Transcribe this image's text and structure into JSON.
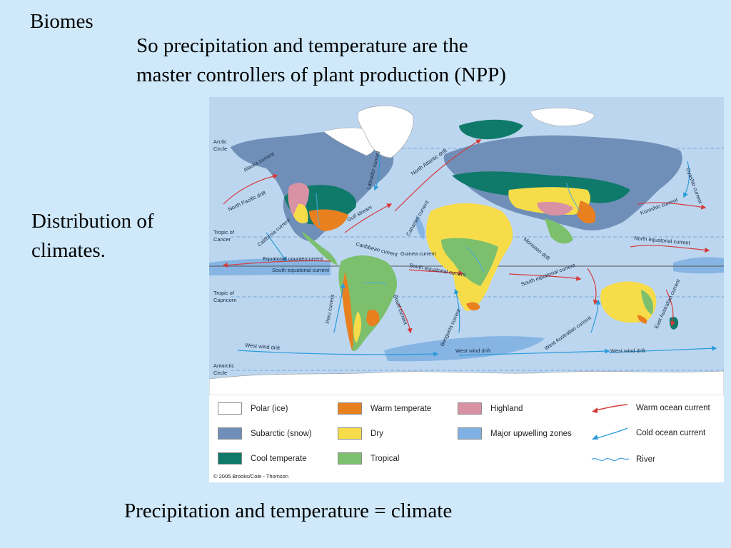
{
  "slide": {
    "title": "Biomes",
    "subtitle_line1": "So precipitation and temperature are the",
    "subtitle_line2": "master controllers of plant production (NPP)",
    "side_line1": "Distribution of",
    "side_line2": "climates.",
    "footer": "Precipitation and temperature = climate"
  },
  "map": {
    "latitude_labels": {
      "arctic": "Arctic",
      "arctic_2": "Circle",
      "cancer": "Tropic of",
      "cancer_2": "Cancer",
      "capricorn": "Tropic of",
      "capricorn_2": "Capricorn",
      "antarctic": "Antarctic",
      "antarctic_2": "Circle"
    },
    "currents": {
      "alaska": "Alaska current",
      "north_pacific": "North Pacific drift",
      "california": "California current",
      "labrador": "Labrador current",
      "north_atlantic": "North Atlantic drift",
      "gulf_stream": "Gulf stream",
      "canaries": "Canaries current",
      "caribbean": "Caribbean current",
      "guinea": "Guinea current",
      "equatorial_counter": "Equatorial countercurrent",
      "south_equatorial": "South equatorial current",
      "south_equatorial_atl": "South equatorial current",
      "south_equatorial_ind": "South equatorial current",
      "peru": "Peru current",
      "brazil": "Brazil current",
      "benguela": "Benguela current",
      "monsoon": "Monsoon drift",
      "kuroshio": "Kuroshio current",
      "oyashio": "Oyashio current",
      "north_equatorial": "North equatorial current",
      "east_australian": "East Australian current",
      "west_australian": "West Australian current",
      "west_wind_1": "West wind drift",
      "west_wind_2": "West wind drift",
      "west_wind_3": "West wind drift"
    }
  },
  "legend": {
    "items": [
      {
        "label": "Polar (ice)",
        "color": "#ffffff"
      },
      {
        "label": "Warm temperate",
        "color": "#e8801f"
      },
      {
        "label": "Highland",
        "color": "#d991a4"
      },
      {
        "label": "Subarctic (snow)",
        "color": "#6f8fb8"
      },
      {
        "label": "Dry",
        "color": "#f7dc4a"
      },
      {
        "label": "Major upwelling zones",
        "color": "#7fb1e2"
      },
      {
        "label": "Cool temperate",
        "color": "#0f7a6a"
      },
      {
        "label": "Tropical",
        "color": "#7cc06e"
      }
    ],
    "arrows": [
      {
        "label": "Warm ocean current",
        "color": "#d63a3a"
      },
      {
        "label": "Cold ocean current",
        "color": "#2b9bd8"
      },
      {
        "label": "River",
        "color": "#4aa8e0"
      }
    ],
    "copyright": "© 2005 Brooks/Cole - Thomson"
  }
}
